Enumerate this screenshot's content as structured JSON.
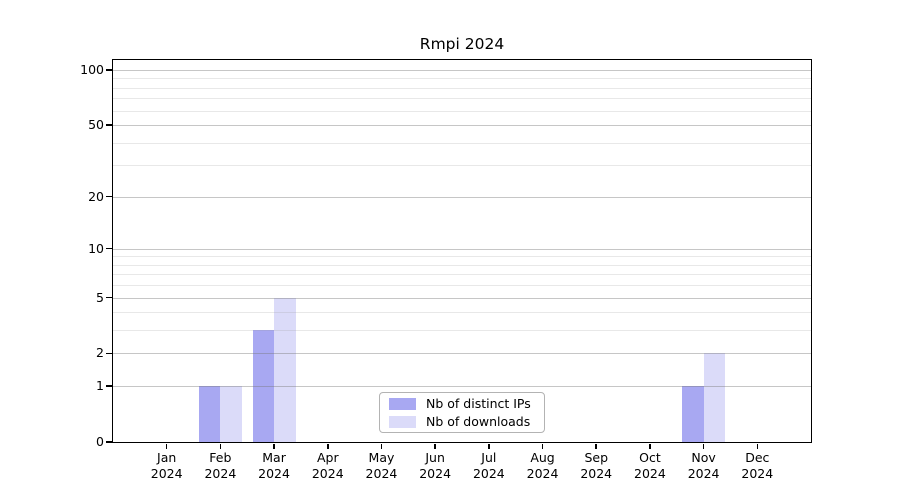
{
  "title": "Rmpi 2024",
  "chart_data": {
    "type": "bar",
    "title": "Rmpi 2024",
    "x_categories": [
      "Jan",
      "Feb",
      "Mar",
      "Apr",
      "May",
      "Jun",
      "Jul",
      "Aug",
      "Sep",
      "Oct",
      "Nov",
      "Dec"
    ],
    "x_year_label": "2024",
    "series": [
      {
        "name": "Nb of distinct IPs",
        "color": "#a8a8f2",
        "values": [
          0,
          1,
          3,
          0,
          0,
          0,
          0,
          0,
          0,
          0,
          1,
          0
        ]
      },
      {
        "name": "Nb of downloads",
        "color": "#dbdbf9",
        "values": [
          0,
          1,
          5,
          0,
          0,
          0,
          0,
          0,
          0,
          0,
          2,
          0
        ]
      }
    ],
    "y_axis": {
      "scale": "log1p",
      "ylim": [
        0,
        100
      ],
      "major_ticks": [
        0,
        1,
        2,
        5,
        10,
        20,
        50,
        100
      ],
      "minor_gridlines": [
        3,
        4,
        6,
        7,
        8,
        9,
        30,
        40,
        60,
        70,
        80,
        90
      ]
    },
    "grid": {
      "major_color": "rgba(120,120,120,0.42)",
      "minor_color": "rgba(150,150,150,0.22)"
    },
    "legend": {
      "position": "bottom-center",
      "entries": [
        "Nb of distinct IPs",
        "Nb of downloads"
      ]
    },
    "axis_color": "#000000",
    "background_color": "#ffffff"
  }
}
